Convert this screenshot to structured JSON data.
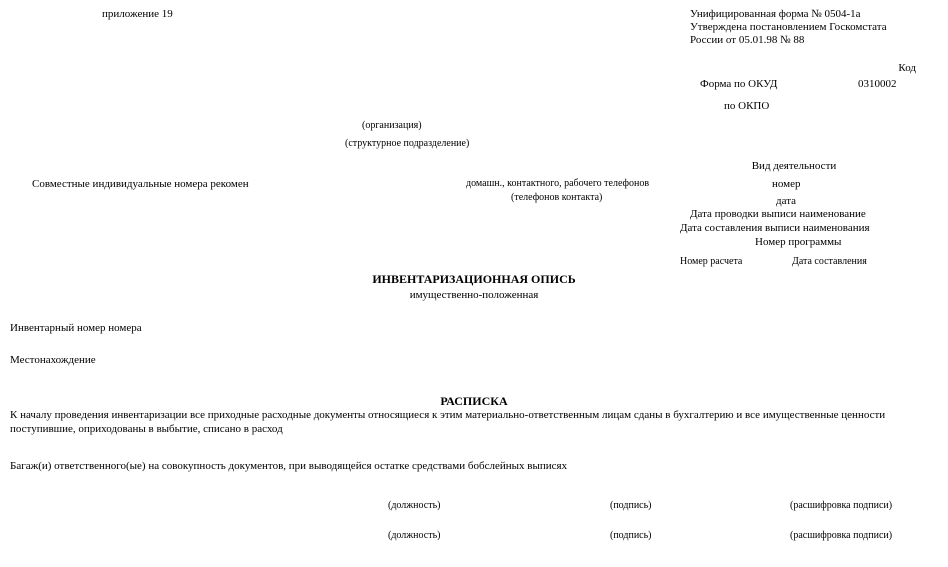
{
  "top_left": "приложение 19",
  "top_right_line1": "Унифицированная форма № 0504-1а",
  "top_right_line2": "Утверждена постановлением Госкомстата",
  "top_right_line3": "России от 05.01.98 № 88",
  "kod": "Код",
  "form_okud": "Форма по ОКУД",
  "code_okud": "0310002",
  "po_okpo": "по ОКПО",
  "org_note": "(организация)",
  "struct_note": "(структурное подразделение)",
  "credit_left": "Совместные индивидуальные номера рекомен",
  "credit_mid": "домашн., контактного, рабочего телефонов",
  "credit_mid2": "(телефонов контакта)",
  "vid_dejat": "Вид деятельности",
  "nomer": "номер",
  "data": "дата",
  "provodka": "Дата проводки выписи наименование",
  "sost": "Дата составления выписи наименования",
  "rel": "Номер программы",
  "nomer_rascheta": "Номер расчета",
  "data_rascheta": "Дата составления",
  "title": "ИНВЕНТАРИЗАЦИОННАЯ ОПИСЬ",
  "subtitle": "имущественно-положенная",
  "nomer_postojan": "Инвентарный номер номера",
  "mesto": "Местонахождение",
  "raspiska": "РАСПИСКА",
  "raspiska_body": "К началу проведения инвентаризации все приходные расходные документы относящиеся к этим материально-ответственным лицам сданы в бухгалтерию и все имущественные ценности поступившие, оприходованы в выбытие, списано в расход",
  "bagazh": "Багаж(и) ответственного(ые) на совокупность документов, при выводящейся остатке средствами бобслейных выписях",
  "sig": {
    "dolzhnost": "(должность)",
    "podpis": "(подпись)",
    "rasshifrovka": "(расшифровка подписи)"
  }
}
